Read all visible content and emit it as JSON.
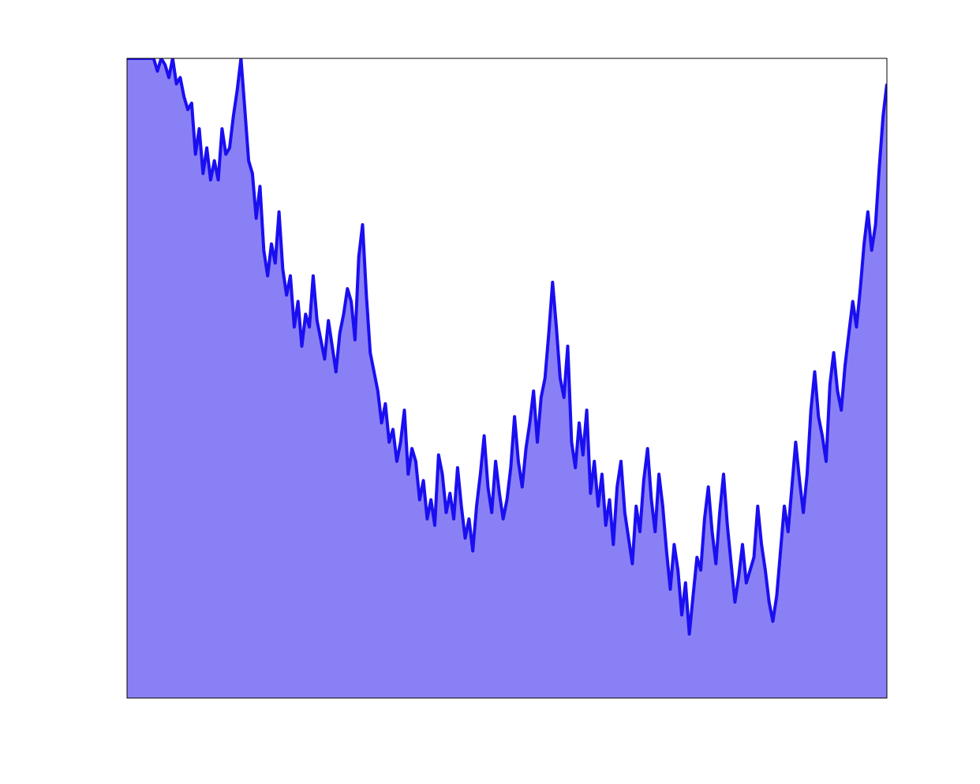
{
  "chart_data": {
    "type": "area",
    "title": "",
    "xlabel": "",
    "ylabel": "",
    "grid": false,
    "legend": "none",
    "xlim": [
      0,
      1
    ],
    "ylim": [
      0,
      1
    ],
    "colors": {
      "line": "#1a0ff0",
      "fill": "#8a80f5",
      "frame": "#000000",
      "background": "#ffffff"
    },
    "series": [
      {
        "x": [
          0,
          0.005,
          0.01,
          0.015,
          0.02,
          0.025,
          0.03,
          0.035,
          0.04,
          0.045,
          0.05,
          0.055,
          0.06,
          0.065,
          0.07,
          0.075,
          0.08,
          0.085,
          0.09,
          0.095,
          0.1,
          0.105,
          0.11,
          0.115,
          0.12,
          0.125,
          0.13,
          0.135,
          0.14,
          0.145,
          0.15,
          0.155,
          0.16,
          0.165,
          0.17,
          0.175,
          0.18,
          0.185,
          0.19,
          0.195,
          0.2,
          0.205,
          0.21,
          0.215,
          0.22,
          0.225,
          0.23,
          0.235,
          0.24,
          0.245,
          0.25,
          0.255,
          0.26,
          0.265,
          0.27,
          0.275,
          0.28,
          0.285,
          0.29,
          0.295,
          0.3,
          0.305,
          0.31,
          0.315,
          0.32,
          0.325,
          0.33,
          0.335,
          0.34,
          0.345,
          0.35,
          0.355,
          0.36,
          0.365,
          0.37,
          0.375,
          0.38,
          0.385,
          0.39,
          0.395,
          0.4,
          0.405,
          0.41,
          0.415,
          0.42,
          0.425,
          0.43,
          0.435,
          0.44,
          0.445,
          0.45,
          0.455,
          0.46,
          0.465,
          0.47,
          0.475,
          0.48,
          0.485,
          0.49,
          0.495,
          0.5,
          0.505,
          0.51,
          0.515,
          0.52,
          0.525,
          0.53,
          0.535,
          0.54,
          0.545,
          0.55,
          0.555,
          0.56,
          0.565,
          0.57,
          0.575,
          0.58,
          0.585,
          0.59,
          0.595,
          0.6,
          0.605,
          0.61,
          0.615,
          0.62,
          0.625,
          0.63,
          0.635,
          0.64,
          0.645,
          0.65,
          0.655,
          0.66,
          0.665,
          0.67,
          0.675,
          0.68,
          0.685,
          0.69,
          0.695,
          0.7,
          0.705,
          0.71,
          0.715,
          0.72,
          0.725,
          0.73,
          0.735,
          0.74,
          0.745,
          0.75,
          0.755,
          0.76,
          0.765,
          0.77,
          0.775,
          0.78,
          0.785,
          0.79,
          0.795,
          0.8,
          0.805,
          0.81,
          0.815,
          0.82,
          0.825,
          0.83,
          0.835,
          0.84,
          0.845,
          0.85,
          0.855,
          0.86,
          0.865,
          0.87,
          0.875,
          0.88,
          0.885,
          0.89,
          0.895,
          0.9,
          0.905,
          0.91,
          0.915,
          0.92,
          0.925,
          0.93,
          0.935,
          0.94,
          0.945,
          0.95,
          0.955,
          0.96,
          0.965,
          0.97,
          0.975,
          0.98,
          0.985,
          0.99,
          0.995,
          1
        ],
        "y": [
          1.0,
          1.0,
          1.0,
          1.0,
          1.0,
          1.0,
          1.0,
          1.0,
          0.98,
          1.0,
          0.99,
          0.97,
          1.0,
          0.96,
          0.97,
          0.94,
          0.92,
          0.93,
          0.85,
          0.89,
          0.82,
          0.86,
          0.81,
          0.84,
          0.81,
          0.89,
          0.85,
          0.86,
          0.91,
          0.95,
          1.0,
          0.92,
          0.84,
          0.82,
          0.75,
          0.8,
          0.7,
          0.66,
          0.71,
          0.68,
          0.76,
          0.67,
          0.63,
          0.66,
          0.58,
          0.62,
          0.55,
          0.6,
          0.58,
          0.66,
          0.59,
          0.56,
          0.53,
          0.59,
          0.55,
          0.51,
          0.57,
          0.6,
          0.64,
          0.62,
          0.56,
          0.69,
          0.74,
          0.63,
          0.54,
          0.51,
          0.48,
          0.43,
          0.46,
          0.4,
          0.42,
          0.37,
          0.4,
          0.45,
          0.35,
          0.39,
          0.37,
          0.31,
          0.34,
          0.28,
          0.31,
          0.27,
          0.38,
          0.35,
          0.29,
          0.32,
          0.28,
          0.36,
          0.3,
          0.25,
          0.28,
          0.23,
          0.3,
          0.35,
          0.41,
          0.33,
          0.29,
          0.37,
          0.32,
          0.28,
          0.31,
          0.36,
          0.44,
          0.37,
          0.33,
          0.39,
          0.43,
          0.48,
          0.4,
          0.47,
          0.5,
          0.57,
          0.65,
          0.58,
          0.5,
          0.47,
          0.55,
          0.4,
          0.36,
          0.43,
          0.38,
          0.45,
          0.32,
          0.37,
          0.3,
          0.35,
          0.27,
          0.31,
          0.24,
          0.33,
          0.37,
          0.29,
          0.25,
          0.21,
          0.3,
          0.26,
          0.34,
          0.39,
          0.31,
          0.26,
          0.35,
          0.3,
          0.23,
          0.17,
          0.24,
          0.2,
          0.13,
          0.18,
          0.1,
          0.16,
          0.22,
          0.2,
          0.28,
          0.33,
          0.26,
          0.21,
          0.29,
          0.35,
          0.27,
          0.21,
          0.15,
          0.19,
          0.24,
          0.18,
          0.2,
          0.22,
          0.3,
          0.24,
          0.2,
          0.15,
          0.12,
          0.16,
          0.23,
          0.3,
          0.26,
          0.33,
          0.4,
          0.34,
          0.29,
          0.35,
          0.45,
          0.51,
          0.44,
          0.41,
          0.37,
          0.49,
          0.54,
          0.48,
          0.45,
          0.52,
          0.57,
          0.62,
          0.58,
          0.64,
          0.71,
          0.76,
          0.7,
          0.74,
          0.83,
          0.91,
          0.96
        ]
      }
    ]
  }
}
